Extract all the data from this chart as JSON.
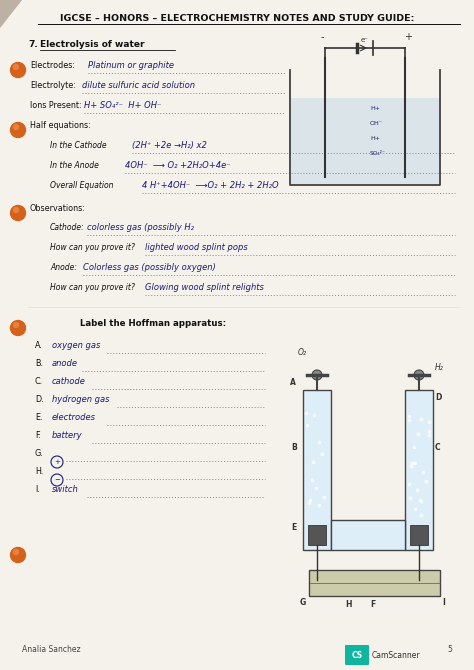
{
  "bg_color": "#f0ece4",
  "paper_color": "#f5f1eb",
  "title": "IGCSE – HONORS – ELECTROCHEMISTRY NOTES AND STUDY GUIDE:",
  "section_num": "7.",
  "section_text": "Electrolysis of water",
  "electrodes_label": "Electrodes:",
  "electrodes_value": "Platinum or graphite",
  "electrolyte_label": "Electrolyte:",
  "electrolyte_value": "dilute sulfuric acid solution",
  "ions_label": "Ions Present:",
  "ions_value": "H+ SO₄²⁻  H+ OH⁻",
  "half_eq_title": "Half equations:",
  "cathode_label": "In the Cathode",
  "cathode_value": "(2H⁺ +2e →H₂) x2",
  "anode_label": "In the Anode",
  "anode_value": "4OH⁻  ⟶ O₂ +2H₂O+4e⁻",
  "overall_label": "Overall Equation",
  "overall_value": "4 H⁺+4OH⁻  ⟶O₂ + 2H₂ + 2H₂O",
  "obs_title": "Observations:",
  "cathode_obs_label": "Cathode:",
  "cathode_obs_value": "colorless gas (possibly H₂",
  "prove1_label": "How can you prove it?",
  "prove1_value": "lighted wood splint pops",
  "anode_obs_label": "Anode:",
  "anode_obs_value": "Colorless gas (possibly oxygen)",
  "prove2_label": "How can you prove it?",
  "prove2_value": "Glowing wood splint relights",
  "hoffman_title": "Label the Hoffman apparatus:",
  "hoffman_items": [
    {
      "letter": "A.",
      "value": "oxygen gas"
    },
    {
      "letter": "B.",
      "value": "anode"
    },
    {
      "letter": "C.",
      "value": "cathode"
    },
    {
      "letter": "D.",
      "value": "hydrogen gas"
    },
    {
      "letter": "E.",
      "value": "electrodes"
    },
    {
      "letter": "F.",
      "value": "battery"
    },
    {
      "letter": "G.",
      "value": "⊕"
    },
    {
      "letter": "H.",
      "value": "⊖"
    },
    {
      "letter": "I.",
      "value": "switch"
    }
  ],
  "footer_name": "Analia Sanchez",
  "footer_page": "5",
  "dot_color": "#d4621a",
  "dot_highlight": "#e88040",
  "text_blue": "#1a1a7a",
  "text_black": "#111111",
  "dot_gray": "#888888"
}
